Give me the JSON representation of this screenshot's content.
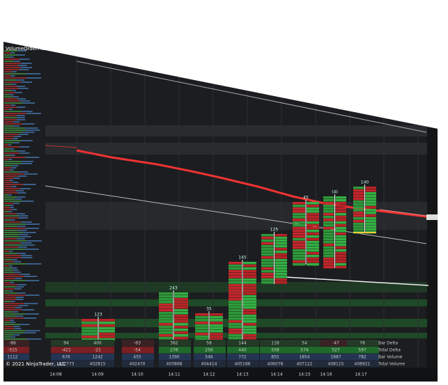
{
  "indicator": "VolumeOrderFlow",
  "times": [
    "14:08",
    "14:09",
    "14:10",
    "14:11",
    "14:12",
    "14:13",
    "14:14",
    "14:15",
    "14:16",
    "14:17"
  ],
  "bar_labels": [
    "123",
    "243",
    "35",
    "145",
    "125",
    "45",
    "(4)",
    "140"
  ],
  "stats": {
    "rows": [
      {
        "label": "Bar Delta",
        "values": [
          -86,
          94,
          400,
          -63,
          362,
          58,
          144,
          118,
          54,
          -47,
          78
        ]
      },
      {
        "label": "Total Delta",
        "values": [
          -515,
          -421,
          -21,
          -54,
          278,
          256,
          440,
          558,
          574,
          527,
          597
        ]
      },
      {
        "label": "Bar Volume",
        "values": [
          1112,
          676,
          1242,
          455,
          1390,
          546,
          772,
          855,
          1854,
          1987,
          782
        ]
      },
      {
        "label": "Total Volume",
        "values": [
          402773,
          402815,
          402470,
          403868,
          404414,
          405186,
          406078,
          407122,
          408115,
          408921
        ]
      }
    ]
  },
  "copyright": "© 2021 NinjaTrader, LLC"
}
